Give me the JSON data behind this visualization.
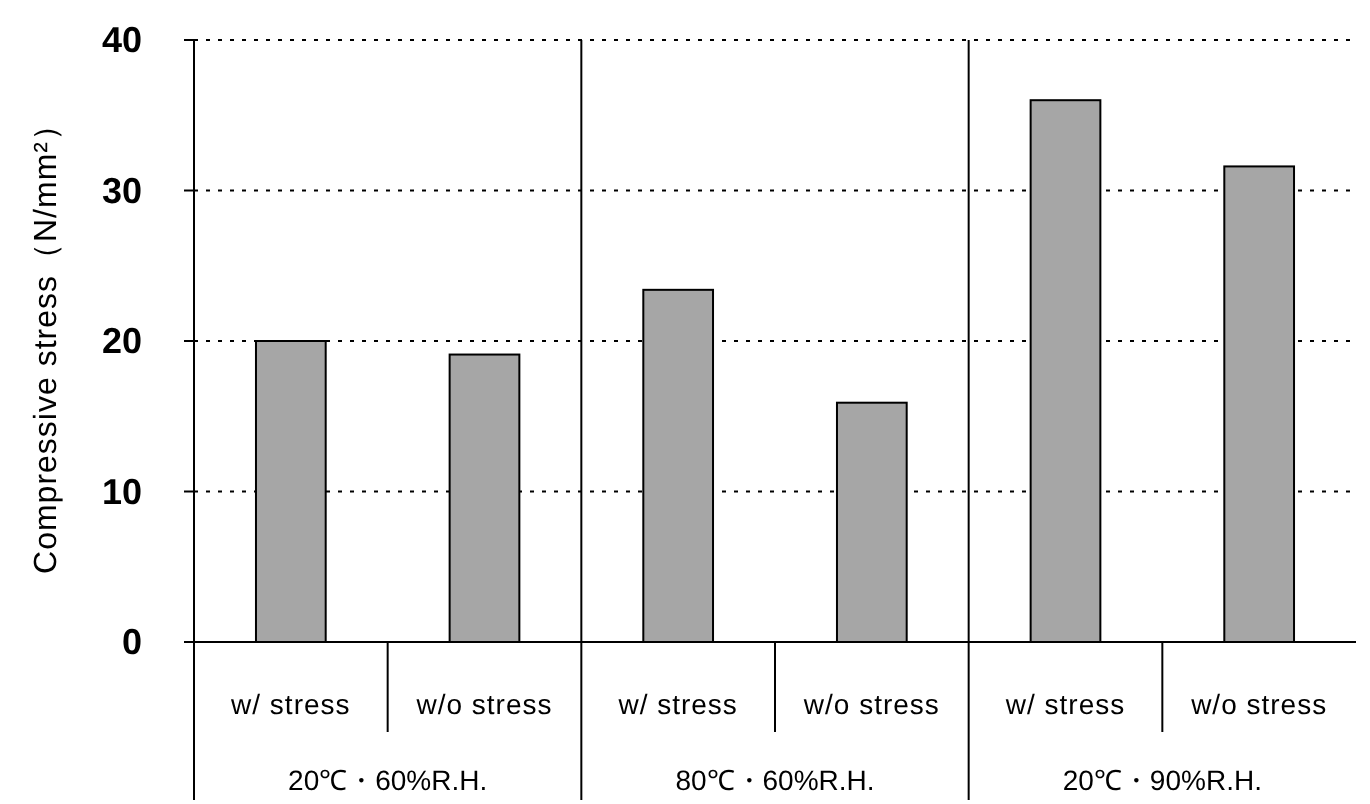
{
  "chart_data": {
    "type": "bar",
    "ylabel": "Compressive stress（N/mm²）",
    "categories": [
      "w/ stress",
      "w/o stress",
      "w/ stress",
      "w/o stress",
      "w/ stress",
      "w/o stress"
    ],
    "values": [
      20.0,
      19.1,
      23.4,
      15.9,
      36.0,
      31.6
    ],
    "color": "#a6a6a6",
    "annotations": [
      "20℃・60%R.H.",
      "80℃・60%R.H.",
      "20℃・90%R.H."
    ],
    "ylim": [
      0,
      40
    ],
    "yticks": [
      0,
      10,
      20,
      30,
      40
    ],
    "grid": "y"
  }
}
